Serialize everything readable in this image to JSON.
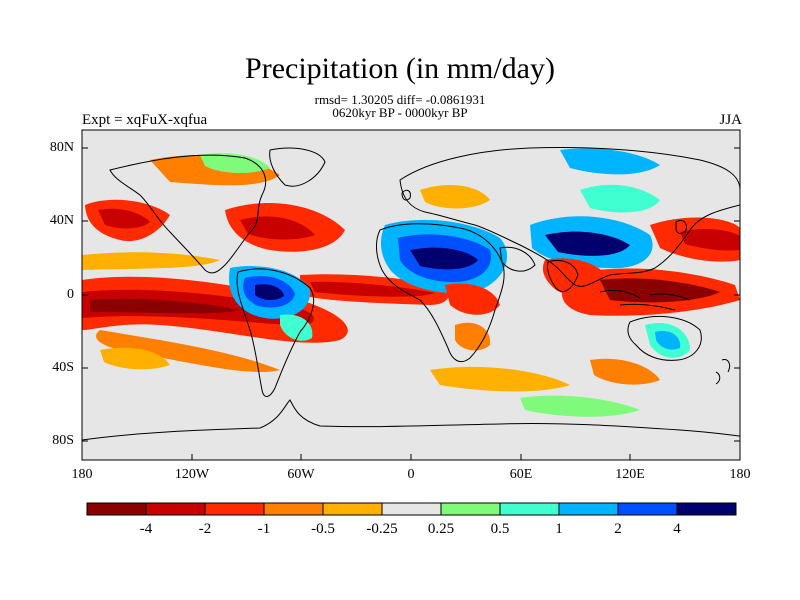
{
  "title": "Precipitation (in mm/day)",
  "stats_line1": "rmsd= 1.30205 diff= -0.0861931",
  "stats_line2": "0620kyr BP - 0000kyr BP",
  "experiment_label": "Expt = xqFuX-xqfua",
  "season_label": "JJA",
  "lat_ticks": [
    "80N",
    "40N",
    "0",
    "40S",
    "80S"
  ],
  "lon_ticks": [
    "180",
    "120W",
    "60W",
    "0",
    "60E",
    "120E",
    "180"
  ],
  "colorbar": {
    "labels": [
      "-4",
      "-2",
      "-1",
      "-0.5",
      "-0.25",
      "0.25",
      "0.5",
      "1",
      "2",
      "4"
    ],
    "colors": [
      "#8b0000",
      "#c80000",
      "#ff2a00",
      "#ff7f00",
      "#ffb000",
      "#e6e6e6",
      "#7ffa7a",
      "#40ffd0",
      "#00b4ff",
      "#0050ff",
      "#00006e"
    ]
  },
  "map_colors": {
    "background": "#e6e6e6",
    "coast": "#000000"
  }
}
